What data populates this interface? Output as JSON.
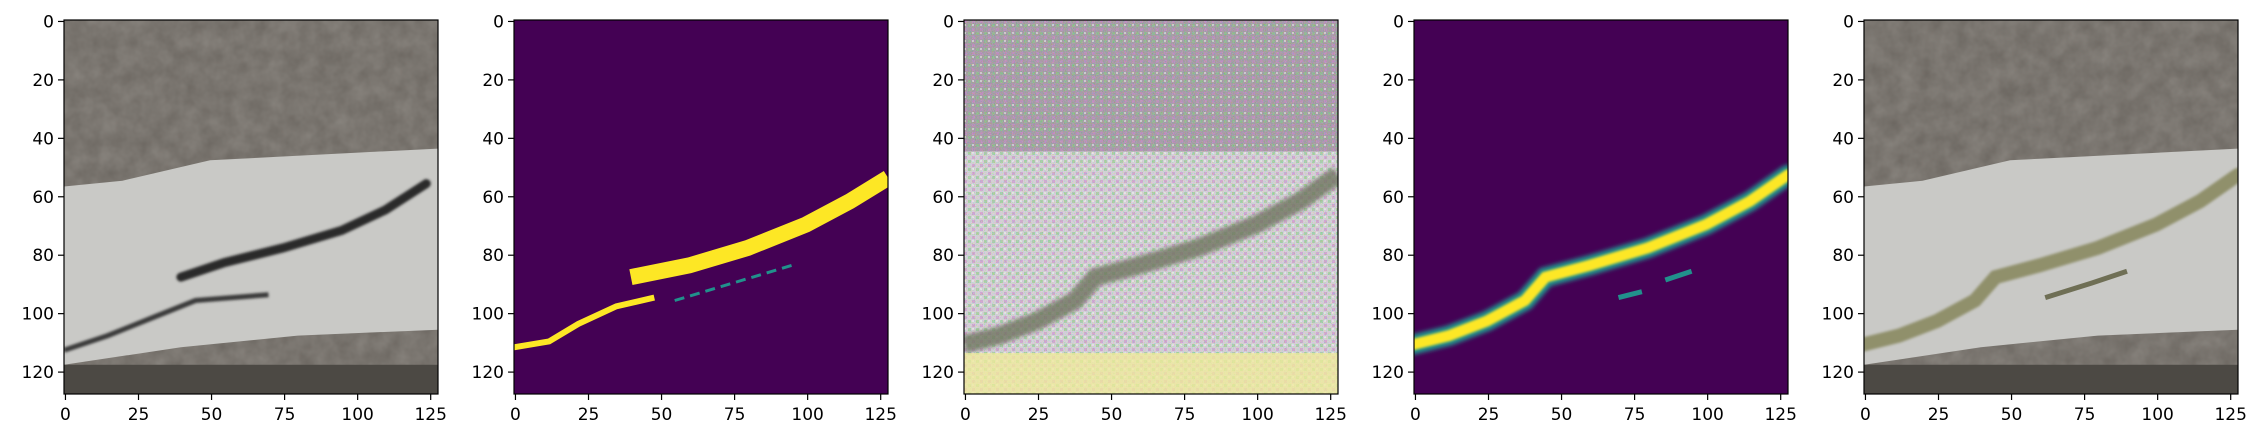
{
  "figure": {
    "panels": [
      {
        "name": "panel-input-photo",
        "kind": "photo"
      },
      {
        "name": "panel-ground-truth-mask",
        "kind": "binary-mask"
      },
      {
        "name": "panel-generated-image",
        "kind": "noisy"
      },
      {
        "name": "panel-predicted-mask",
        "kind": "soft-mask"
      },
      {
        "name": "panel-overlay-photo",
        "kind": "overlay"
      }
    ],
    "x_ticks": [
      "0",
      "25",
      "50",
      "75",
      "100",
      "125"
    ],
    "y_ticks": [
      "0",
      "20",
      "40",
      "60",
      "80",
      "100",
      "120"
    ],
    "axis_range": [
      0,
      128
    ],
    "colors": {
      "mask_background": "#440154",
      "mask_foreground": "#fde725",
      "mask_mid": "#21918c",
      "concrete": "#c9c9c6",
      "soil": "#6b6660"
    }
  }
}
